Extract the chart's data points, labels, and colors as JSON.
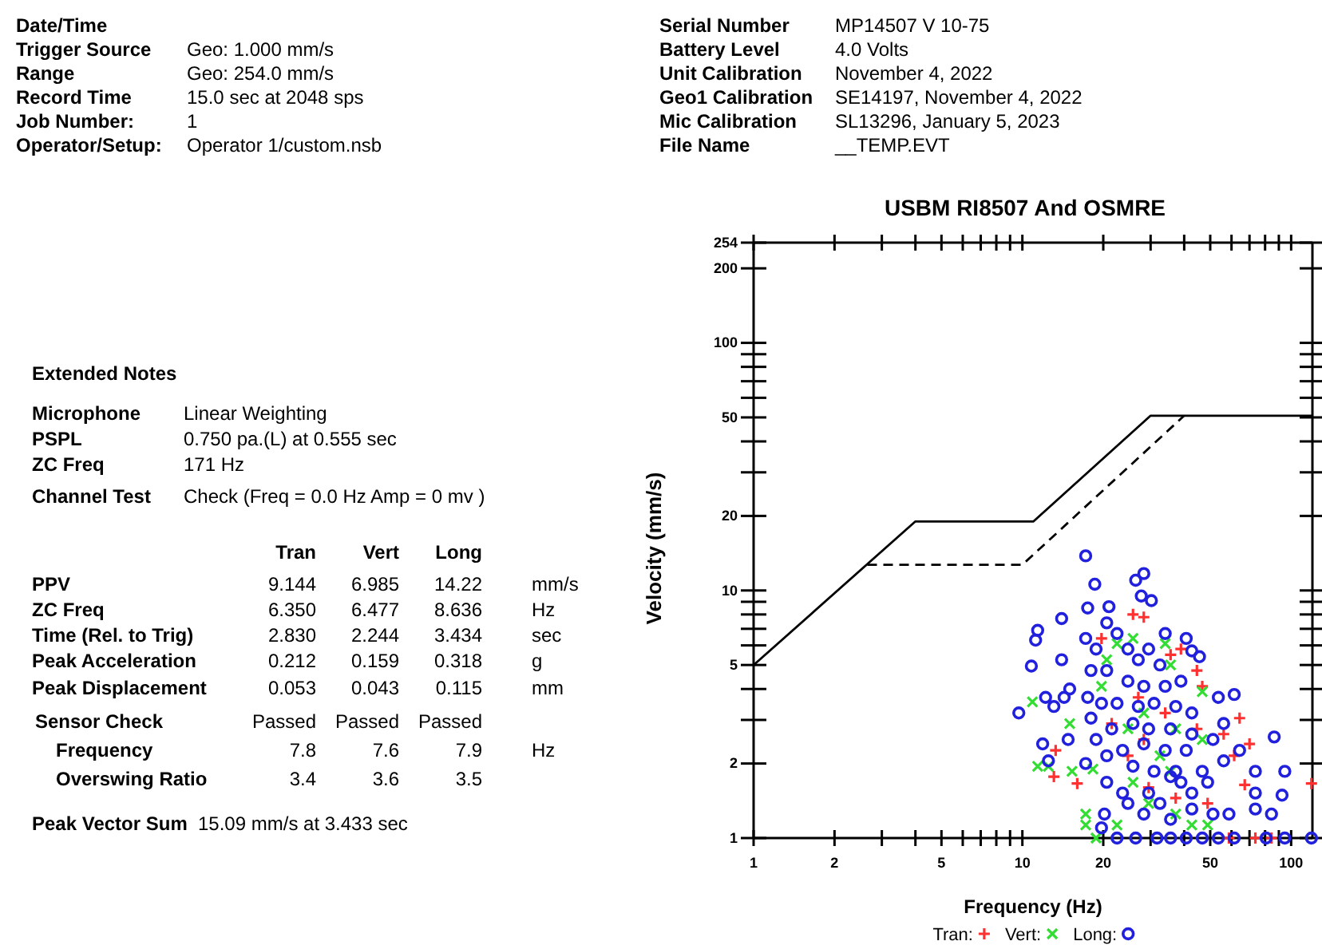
{
  "chart_data": [
    {
      "type": "other",
      "annotations": [
        "Date/Time",
        "Trigger Source",
        "Geo: 1.000 mm/s",
        "Range",
        "Geo: 254.0 mm/s",
        "Record Time",
        "15.0 sec at 2048 sps",
        "Job Number:",
        "1",
        "Operator/Setup:",
        "Operator 1/custom.nsb",
        "Serial Number",
        "MP14507 V 10-75",
        "Battery Level",
        "4.0 Volts",
        "Unit Calibration",
        "November 4, 2022",
        "Geo1 Calibration",
        "SE14197, November 4, 2022",
        "Mic Calibration",
        "SL13296, January 5, 2023",
        "File Name",
        "__TEMP.EVT",
        "Extended Notes",
        "Microphone",
        "Linear Weighting",
        "PSPL",
        "0.750 pa.(L) at 0.555 sec",
        "ZC Freq",
        "171 Hz",
        "Channel Test",
        "Check (Freq = 0.0 Hz Amp = 0 mv )",
        "Tran",
        "Vert",
        "Long",
        "PPV",
        "9.144",
        "6.985",
        "14.22",
        "mm/s",
        "ZC Freq",
        "6.350",
        "6.477",
        "8.636",
        "Hz",
        "Time (Rel. to Trig)",
        "2.830",
        "2.244",
        "3.434",
        "sec",
        "Peak Acceleration",
        "0.212",
        "0.159",
        "0.318",
        "g",
        "Peak Displacement",
        "0.053",
        "0.043",
        "0.115",
        "mm",
        "Sensor Check",
        "Passed",
        "Passed",
        "Passed",
        "Frequency",
        "7.8",
        "7.6",
        "7.9",
        "Hz",
        "Overswing Ratio",
        "3.4",
        "3.6",
        "3.5",
        "Peak Vector Sum",
        "15.09 mm/s at 3.433 sec"
      ]
    },
    {
      "type": "scatter",
      "title": "USBM RI8507 And OSMRE",
      "xlabel": "Frequency (Hz)",
      "ylabel": "Velocity (mm/s)",
      "log": "xy",
      "legend": "bottom",
      "grid": false,
      "xlim": [
        1,
        120
      ],
      "ylim": [
        1,
        254
      ],
      "xticks": [
        1,
        2,
        {
          "value": 3,
          "label": null
        },
        {
          "value": 4,
          "label": null
        },
        5,
        {
          "value": 6,
          "label": null
        },
        {
          "value": 7,
          "label": null
        },
        {
          "value": 8,
          "label": null
        },
        {
          "value": 9,
          "label": null
        },
        10,
        20,
        {
          "value": 30,
          "label": null
        },
        {
          "value": 40,
          "label": null
        },
        50,
        {
          "value": 60,
          "label": null
        },
        {
          "value": 70,
          "label": null
        },
        {
          "value": 80,
          "label": null
        },
        {
          "value": 90,
          "label": null
        },
        100
      ],
      "yticks": [
        1,
        2,
        {
          "value": 3,
          "label": null
        },
        {
          "value": 4,
          "label": null
        },
        5,
        {
          "value": 6,
          "label": null
        },
        {
          "value": 7,
          "label": null
        },
        {
          "value": 8,
          "label": null
        },
        {
          "value": 9,
          "label": null
        },
        10,
        20,
        {
          "value": 30,
          "label": null
        },
        {
          "value": 40,
          "label": null
        },
        50,
        {
          "value": 60,
          "label": null
        },
        {
          "value": 70,
          "label": null
        },
        {
          "value": 80,
          "label": null
        },
        {
          "value": 90,
          "label": null
        },
        100,
        200,
        254
      ],
      "series": [
        {
          "type": "line",
          "color": "#000000",
          "line_style": "solid",
          "marker": "none",
          "x": [
            1,
            4,
            11,
            30,
            120
          ],
          "values": [
            5,
            19,
            19,
            50.8,
            50.8
          ]
        },
        {
          "type": "line",
          "color": "#000000",
          "line_style": "dashed",
          "marker": "none",
          "x": [
            2.65,
            10,
            40
          ],
          "values": [
            12.7,
            12.7,
            50.8
          ]
        },
        {
          "name": "Tran:",
          "type": "scatter",
          "marker": "cross",
          "color": "#ff3030",
          "x": [
            25.8,
            28.3,
            19.7,
            35.6,
            38.9,
            44.6,
            64.3,
            56.1,
            70,
            61.4,
            13.1,
            16,
            13.3,
            29.5,
            37.2,
            48.9,
            119,
            58.7,
            73.6,
            84.5,
            67.2,
            24.7,
            34,
            28.3,
            44.6,
            27,
            46.7,
            21.5
          ],
          "values": [
            8.0,
            7.8,
            6.4,
            5.5,
            5.8,
            4.75,
            3.05,
            2.63,
            2.4,
            2.15,
            1.77,
            1.66,
            2.26,
            1.6,
            1.45,
            1.38,
            1.66,
            1,
            1,
            1,
            1.64,
            2.15,
            3.2,
            2.5,
            2.76,
            3.7,
            4.1,
            2.9
          ]
        },
        {
          "name": "Vert:",
          "type": "scatter",
          "marker": "x",
          "color": "#33dd33",
          "x": [
            10.9,
            15,
            11.4,
            12.5,
            15.3,
            18.3,
            17.2,
            17.2,
            18.8,
            20.6,
            22.5,
            25.8,
            34,
            35.6,
            46.7,
            28.3,
            24.7,
            32.5,
            35.6,
            25.8,
            29.5,
            37.2,
            42.7,
            48.9,
            22.5,
            46.7,
            37.2,
            19.7
          ],
          "values": [
            3.55,
            2.9,
            1.95,
            1.95,
            1.86,
            1.9,
            1.25,
            1.13,
            1,
            5.25,
            6.1,
            6.4,
            6.1,
            5,
            3.9,
            3.2,
            2.76,
            2.15,
            1.86,
            1.68,
            1.38,
            1.25,
            1.13,
            1.13,
            1.13,
            2.5,
            2.76,
            4.1
          ]
        },
        {
          "name": "Long:",
          "type": "scatter",
          "marker": "circle",
          "color": "#2020dd",
          "x": [
            17.2,
            28.3,
            26.4,
            18.6,
            27.7,
            30.2,
            17.5,
            21,
            14,
            20.6,
            11.4,
            11.2,
            17.2,
            18.8,
            10.8,
            14,
            18,
            40.7,
            45.6,
            42.7,
            12.2,
            14.3,
            9.7,
            13.1,
            15,
            17.5,
            11.9,
            14.8,
            12.5,
            17.2,
            18.8,
            20.6,
            20.6,
            20.2,
            19.7,
            22.5,
            26.4,
            31.7,
            35.6,
            40.7,
            46.7,
            53.6,
            61.4,
            80.7,
            94.7,
            119,
            94.7,
            84.5,
            73.6,
            73.6,
            73.6,
            86.5,
            92.5,
            64.3,
            56.1,
            61.4,
            53.6,
            51.2,
            56.1,
            48.9,
            42.7,
            37.2,
            42.7,
            51.2,
            58.7,
            32.5,
            28.3,
            23.6,
            35.6,
            38.9,
            46.7,
            24.7,
            27,
            29.5,
            32.5,
            24.7,
            28.3,
            34,
            38.9,
            22.5,
            27,
            30.9,
            37.2,
            42.7,
            21.5,
            25.8,
            29.5,
            35.6,
            42.7,
            23.6,
            28.3,
            34,
            40.7,
            25.8,
            30.9,
            35.6,
            29.5,
            24.7,
            34,
            22.5,
            20.6,
            19.7,
            18
          ],
          "values": [
            13.8,
            11.7,
            11,
            10.6,
            9.5,
            9.1,
            8.5,
            8.6,
            7.7,
            7.4,
            6.9,
            6.3,
            6.4,
            5.8,
            4.95,
            5.25,
            4.75,
            6.4,
            5.4,
            5.7,
            3.7,
            3.7,
            3.2,
            3.4,
            4,
            3.7,
            2.4,
            2.5,
            2.05,
            2,
            2.5,
            2.15,
            1.68,
            1.25,
            1.1,
            1,
            1,
            1,
            1,
            1,
            1,
            1,
            1,
            1,
            1,
            1,
            1.86,
            1.25,
            1.52,
            1.31,
            1.86,
            2.56,
            1.49,
            2.26,
            2.9,
            3.8,
            3.7,
            2.5,
            2.05,
            1.68,
            1.52,
            1.86,
            1.31,
            1.25,
            1.25,
            1.38,
            1.25,
            1.52,
            1.19,
            1.68,
            1.86,
            5.8,
            5.25,
            5.8,
            5,
            4.3,
            4.1,
            4.1,
            4.3,
            3.5,
            3.4,
            3.5,
            3.4,
            3.2,
            2.76,
            2.9,
            2.76,
            2.76,
            2.63,
            2.26,
            2.4,
            2.26,
            2.26,
            1.95,
            1.86,
            1.77,
            1.52,
            1.38,
            6.7,
            6.7,
            4.75,
            3.5,
            3.05
          ]
        }
      ]
    }
  ]
}
